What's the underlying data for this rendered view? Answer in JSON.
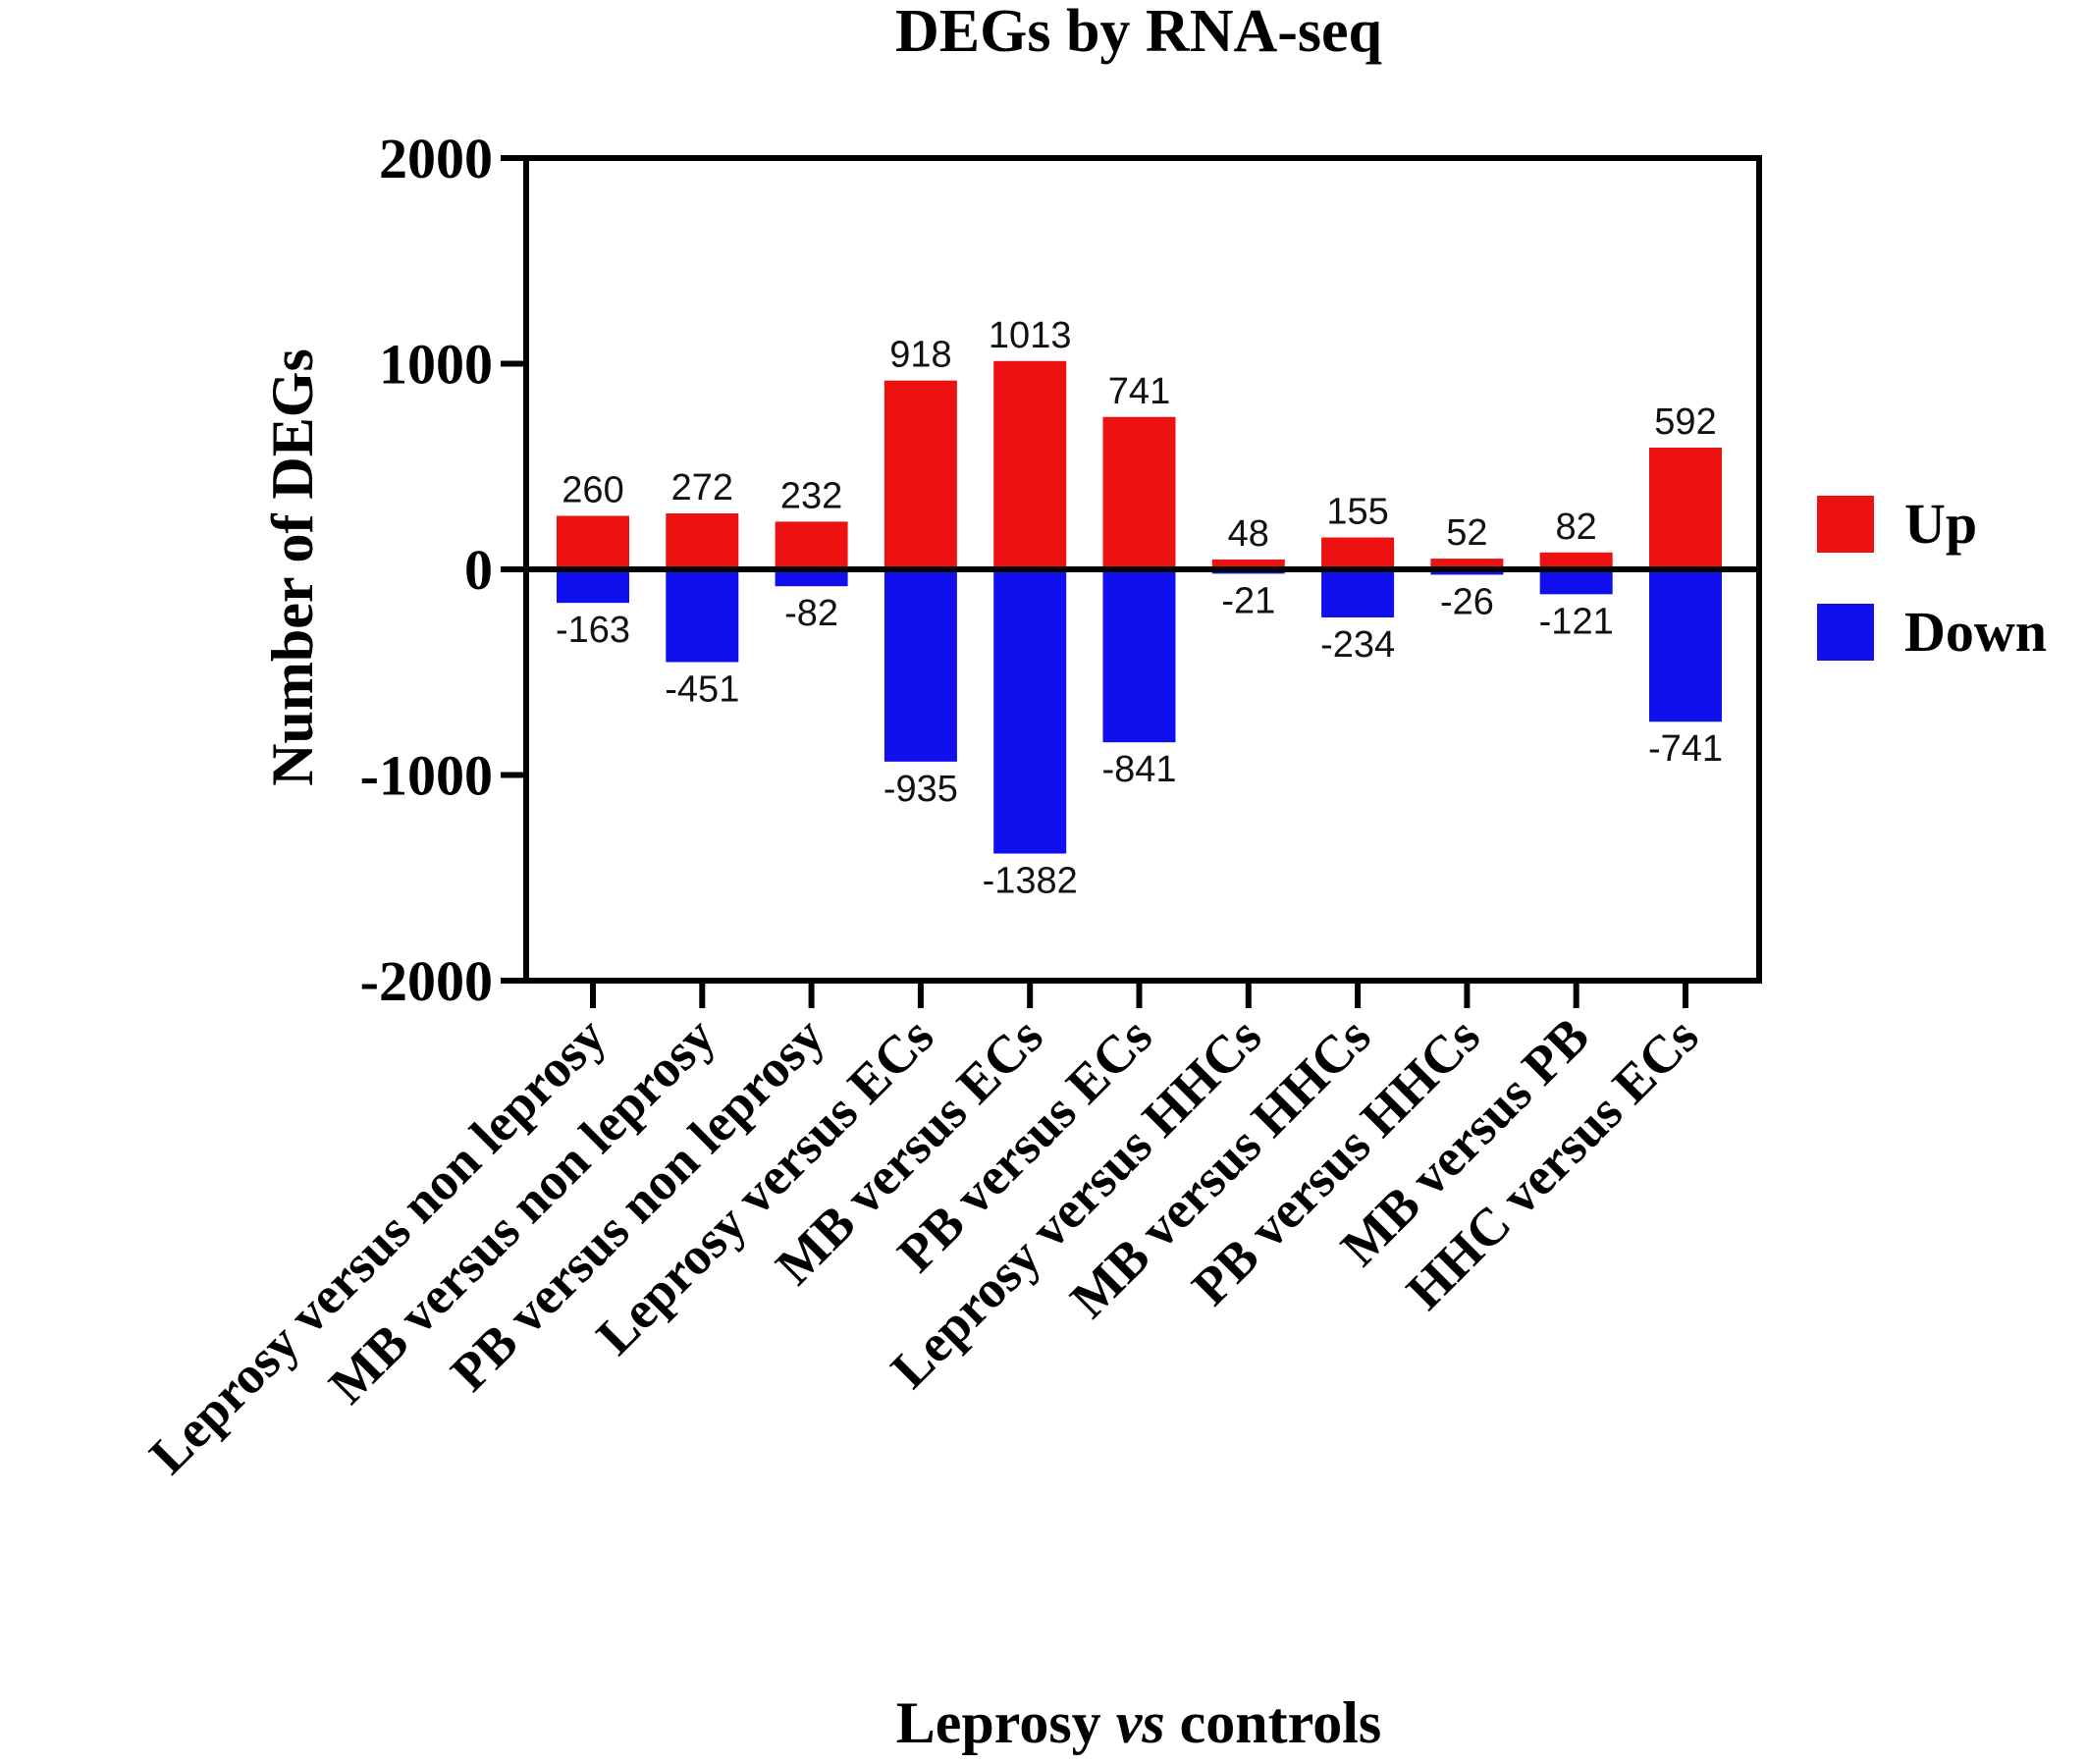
{
  "chart_data": {
    "type": "bar",
    "title": "DEGs by RNA-seq",
    "ylabel": "Number of DEGs",
    "xlabel_parts": [
      "Leprosy ",
      "vs",
      " controls"
    ],
    "ylim": [
      -2000,
      2000
    ],
    "yticks": [
      2000,
      1000,
      0,
      -1000,
      -2000
    ],
    "categories": [
      "Leprosy versus non leprosy",
      "MB versus non leprosy",
      "PB versus non leprosy",
      "Leprosy versus ECs",
      "MB versus ECs",
      "PB versus ECs",
      "Leprosy versus HHCs",
      "MB versus HHCs",
      "PB versus HHCs",
      "MB versus PB",
      "HHC versus ECs"
    ],
    "series": [
      {
        "name": "Up",
        "color": "#ee1111",
        "values": [
          260,
          272,
          232,
          918,
          1013,
          741,
          48,
          155,
          52,
          82,
          592
        ]
      },
      {
        "name": "Down",
        "color": "#1010ee",
        "values": [
          -163,
          -451,
          -82,
          -935,
          -1382,
          -841,
          -21,
          -234,
          -26,
          -121,
          -741
        ]
      }
    ],
    "legend_position": "right",
    "grid": false
  }
}
